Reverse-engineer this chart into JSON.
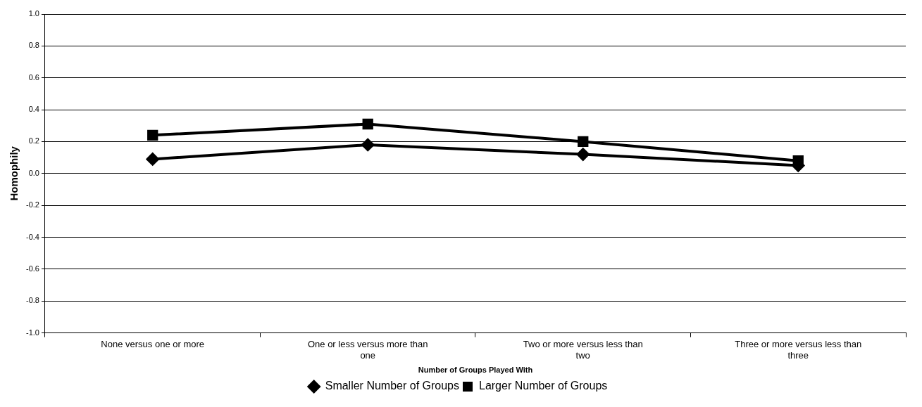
{
  "chart_data": {
    "type": "line",
    "xlabel": "Number of Groups Played With",
    "ylabel": "Homophily",
    "categories": [
      "None versus one or more",
      "One or less versus more than one",
      "Two or more versus less than two",
      "Three or more versus less than three"
    ],
    "series": [
      {
        "name": "Smaller Number of Groups",
        "color": "#000000",
        "marker": "diamond",
        "values": [
          0.09,
          0.18,
          0.12,
          0.05
        ]
      },
      {
        "name": "Larger Number of Groups",
        "color": "#000000",
        "marker": "square",
        "values": [
          0.24,
          0.31,
          0.2,
          0.08
        ]
      }
    ],
    "ylim": [
      -1,
      1
    ],
    "yticks": [
      {
        "value": -1,
        "label": "-1.0"
      },
      -0.8,
      -0.6,
      -0.4,
      -0.2,
      {
        "value": 0,
        "label": "0.0"
      },
      0.2,
      0.4,
      0.6,
      0.8,
      {
        "value": 1,
        "label": "1.0"
      }
    ],
    "grid": "y",
    "legend": "bottom",
    "line_style": "solid"
  }
}
